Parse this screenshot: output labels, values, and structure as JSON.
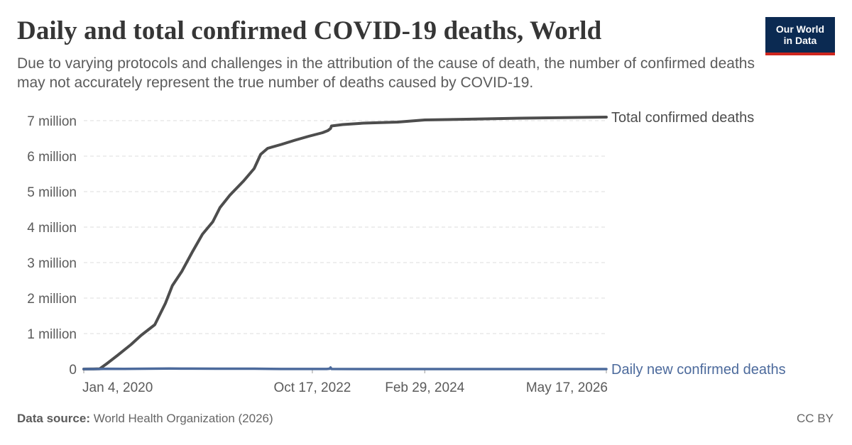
{
  "header": {
    "title": "Daily and total confirmed COVID-19 deaths, World",
    "subtitle": "Due to varying protocols and challenges in the attribution of the cause of death, the number of confirmed deaths may not accurately represent the true number of deaths caused by COVID-19."
  },
  "logo": {
    "line1": "Our World",
    "line2": "in Data"
  },
  "footer": {
    "source_label": "Data source:",
    "source_text": "World Health Organization (2026)",
    "license": "CC BY"
  },
  "colors": {
    "total": "#4d4d4d",
    "daily": "#4c6a9c",
    "grid": "#dddddd",
    "axis_text": "#5b5b5b"
  },
  "chart_data": {
    "type": "line",
    "title": "Daily and total confirmed COVID-19 deaths, World",
    "xlabel": "",
    "ylabel": "",
    "xlim": [
      "2020-01-04",
      "2026-05-17"
    ],
    "ylim": [
      0,
      7000000
    ],
    "grid": "horizontal dashed",
    "legend": "inline labels at right end of lines",
    "y_ticks": [
      {
        "value": 0,
        "label": "0"
      },
      {
        "value": 1000000,
        "label": "1 million"
      },
      {
        "value": 2000000,
        "label": "2 million"
      },
      {
        "value": 3000000,
        "label": "3 million"
      },
      {
        "value": 4000000,
        "label": "4 million"
      },
      {
        "value": 5000000,
        "label": "5 million"
      },
      {
        "value": 6000000,
        "label": "6 million"
      },
      {
        "value": 7000000,
        "label": "7 million"
      }
    ],
    "x_ticks": [
      {
        "date": "2020-01-04",
        "label": "Jan 4, 2020"
      },
      {
        "date": "2022-10-17",
        "label": "Oct 17, 2022"
      },
      {
        "date": "2024-02-29",
        "label": "Feb 29, 2024"
      },
      {
        "date": "2026-05-17",
        "label": "May 17, 2026"
      }
    ],
    "series": [
      {
        "name": "Total confirmed deaths",
        "color": "#4d4d4d",
        "points": [
          [
            "2020-01-04",
            0
          ],
          [
            "2020-02-15",
            2000
          ],
          [
            "2020-03-15",
            7000
          ],
          [
            "2020-04-15",
            150000
          ],
          [
            "2020-06-01",
            380000
          ],
          [
            "2020-08-01",
            690000
          ],
          [
            "2020-09-15",
            950000
          ],
          [
            "2020-11-15",
            1250000
          ],
          [
            "2021-01-01",
            1850000
          ],
          [
            "2021-02-01",
            2350000
          ],
          [
            "2021-03-15",
            2750000
          ],
          [
            "2021-05-01",
            3300000
          ],
          [
            "2021-06-15",
            3800000
          ],
          [
            "2021-07-31",
            4150000
          ],
          [
            "2021-09-01",
            4550000
          ],
          [
            "2021-10-15",
            4900000
          ],
          [
            "2021-12-15",
            5300000
          ],
          [
            "2022-01-31",
            5650000
          ],
          [
            "2022-03-01",
            6050000
          ],
          [
            "2022-04-01",
            6220000
          ],
          [
            "2022-06-01",
            6330000
          ],
          [
            "2022-08-01",
            6450000
          ],
          [
            "2022-10-01",
            6560000
          ],
          [
            "2022-12-01",
            6660000
          ],
          [
            "2022-12-25",
            6720000
          ],
          [
            "2023-01-06",
            6780000
          ],
          [
            "2023-01-10",
            6850000
          ],
          [
            "2023-03-01",
            6890000
          ],
          [
            "2023-06-01",
            6930000
          ],
          [
            "2023-11-01",
            6960000
          ],
          [
            "2024-02-29",
            7020000
          ],
          [
            "2024-09-01",
            7040000
          ],
          [
            "2025-05-01",
            7070000
          ],
          [
            "2026-05-17",
            7100000
          ]
        ]
      },
      {
        "name": "Daily new confirmed deaths",
        "color": "#4c6a9c",
        "points": [
          [
            "2020-01-04",
            0
          ],
          [
            "2020-03-15",
            1500
          ],
          [
            "2020-04-15",
            8000
          ],
          [
            "2020-07-01",
            5000
          ],
          [
            "2021-01-20",
            15000
          ],
          [
            "2021-05-01",
            12000
          ],
          [
            "2021-08-15",
            10000
          ],
          [
            "2022-02-01",
            10000
          ],
          [
            "2022-06-01",
            2000
          ],
          [
            "2022-12-20",
            3000
          ],
          [
            "2023-01-02",
            9000
          ],
          [
            "2023-01-06",
            45000
          ],
          [
            "2023-01-10",
            3000
          ],
          [
            "2023-06-01",
            1000
          ],
          [
            "2024-02-29",
            500
          ],
          [
            "2025-01-01",
            200
          ],
          [
            "2026-05-17",
            100
          ]
        ]
      }
    ]
  }
}
